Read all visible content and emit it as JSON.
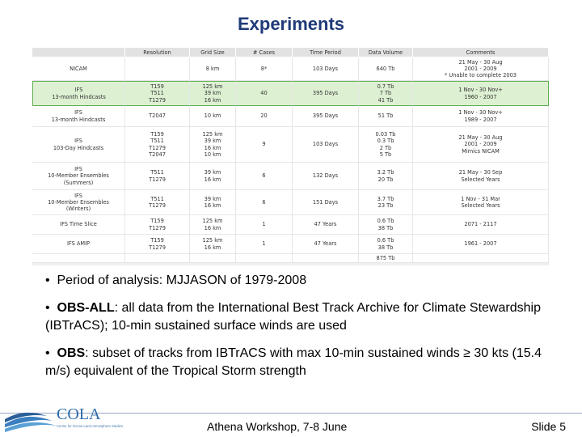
{
  "slide": {
    "title": "Experiments",
    "footer_center": "Athena Workshop, 7-8 June",
    "footer_right": "Slide 5",
    "logo_text": "COLA",
    "logo_sub": "Center for Ocean-Land-Atmosphere Studies"
  },
  "table": {
    "headers": [
      "",
      "Resolution",
      "Grid Size",
      "# Cases",
      "Time Period",
      "Data Volume",
      "Comments"
    ],
    "rows": [
      {
        "cells": [
          [
            "NICAM"
          ],
          [
            ""
          ],
          [
            "8 km"
          ],
          [
            "8*"
          ],
          [
            "103 Days"
          ],
          [
            "640 Tb"
          ],
          [
            "21 May - 30 Aug",
            "2001 - 2009",
            "* Unable to complete 2003"
          ]
        ]
      },
      {
        "highlight": true,
        "cells": [
          [
            "IFS",
            "13-month Hindcasts"
          ],
          [
            "T159",
            "T511",
            "T1279"
          ],
          [
            "125 km",
            "39 km",
            "16 km"
          ],
          [
            "40"
          ],
          [
            "395 Days"
          ],
          [
            "0.7 Tb",
            "7 Tb",
            "41 Tb"
          ],
          [
            "1 Nov - 30 Nov+",
            "1960 - 2007"
          ]
        ]
      },
      {
        "cells": [
          [
            "IFS",
            "13-month Hindcasts"
          ],
          [
            "T2047"
          ],
          [
            "10 km"
          ],
          [
            "20"
          ],
          [
            "395 Days"
          ],
          [
            "51 Tb"
          ],
          [
            "1 Nov - 30 Nov+",
            "1989 - 2007"
          ]
        ]
      },
      {
        "cells": [
          [
            "IFS",
            "103-Day Hindcasts"
          ],
          [
            "T159",
            "T511",
            "T1279",
            "T2047"
          ],
          [
            "125 km",
            "39 km",
            "16 km",
            "10 km"
          ],
          [
            "9"
          ],
          [
            "103 Days"
          ],
          [
            "0.03 Tb",
            "0.3 Tb",
            "2 Tb",
            "5 Tb"
          ],
          [
            "21 May - 30 Aug",
            "2001 - 2009",
            "Mimics NICAM"
          ]
        ]
      },
      {
        "cells": [
          [
            "IFS",
            "10-Member Ensembles",
            "(Summers)"
          ],
          [
            "T511",
            "T1279"
          ],
          [
            "39 km",
            "16 km"
          ],
          [
            "6"
          ],
          [
            "132 Days"
          ],
          [
            "3.2 Tb",
            "20 Tb"
          ],
          [
            "21 May - 30 Sep",
            "Selected Years"
          ]
        ]
      },
      {
        "cells": [
          [
            "IFS",
            "10-Member Ensembles",
            "(Winters)"
          ],
          [
            "T511",
            "T1279"
          ],
          [
            "39 km",
            "16 km"
          ],
          [
            "6"
          ],
          [
            "151 Days"
          ],
          [
            "3.7 Tb",
            "23 Tb"
          ],
          [
            "1 Nov - 31 Mar",
            "Selected Years"
          ]
        ]
      },
      {
        "cells": [
          [
            "IFS Time Slice"
          ],
          [
            "T159",
            "T1279"
          ],
          [
            "125 km",
            "16 km"
          ],
          [
            "1"
          ],
          [
            "47 Years"
          ],
          [
            "0.6 Tb",
            "38 Tb"
          ],
          [
            "2071 - 2117"
          ]
        ]
      },
      {
        "cells": [
          [
            "IFS AMIP"
          ],
          [
            "T159",
            "T1279"
          ],
          [
            "125 km",
            "16 km"
          ],
          [
            "1"
          ],
          [
            "47 Years"
          ],
          [
            "0.6 Tb",
            "38 Tb"
          ],
          [
            "1961 - 2007"
          ]
        ]
      },
      {
        "cells": [
          [
            ""
          ],
          [
            ""
          ],
          [
            ""
          ],
          [
            ""
          ],
          [
            ""
          ],
          [
            "875 Tb"
          ],
          [
            ""
          ]
        ]
      }
    ]
  },
  "bullets": [
    {
      "marker": "•",
      "bold": "",
      "text": "Period of analysis:  MJJASON of 1979-2008"
    },
    {
      "marker": "•",
      "bold": "OBS-ALL",
      "text": ":  all data from the International Best Track Archive for Climate Stewardship (IBTrACS); 10-min sustained surface winds are used"
    },
    {
      "marker": "•",
      "bold": "OBS",
      "text": ":  subset of tracks from IBTrACS with max 10-min sustained winds ≥ 30 kts (15.4 m/s) equivalent of the Tropical Storm strength"
    }
  ]
}
